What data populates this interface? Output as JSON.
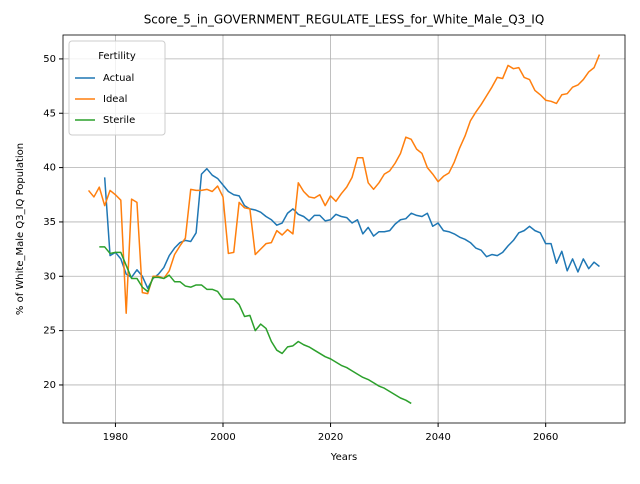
{
  "chart_data": {
    "type": "line",
    "title": "Score_5_in_GOVERNMENT_REGULATE_LESS_for_White_Male_Q3_IQ",
    "x_label": "Years",
    "y_label": "% of White_Male Q3_IQ Population",
    "legend_title": "Fertility",
    "legend_loc": "upper left",
    "grid": true,
    "xlim": [
      1970.25,
      2074.75
    ],
    "ylim": [
      16.5,
      52.2
    ],
    "xticks": [
      1980,
      2000,
      2020,
      2040,
      2060
    ],
    "yticks": [
      20,
      25,
      30,
      35,
      40,
      45,
      50
    ],
    "x": [
      1975,
      1976,
      1977,
      1978,
      1979,
      1980,
      1981,
      1982,
      1983,
      1984,
      1985,
      1986,
      1987,
      1988,
      1989,
      1990,
      1991,
      1992,
      1993,
      1994,
      1995,
      1996,
      1997,
      1998,
      1999,
      2000,
      2001,
      2002,
      2003,
      2004,
      2005,
      2006,
      2007,
      2008,
      2009,
      2010,
      2011,
      2012,
      2013,
      2014,
      2015,
      2016,
      2017,
      2018,
      2019,
      2020,
      2021,
      2022,
      2023,
      2024,
      2025,
      2026,
      2027,
      2028,
      2029,
      2030,
      2031,
      2032,
      2033,
      2034,
      2035,
      2036,
      2037,
      2038,
      2039,
      2040,
      2041,
      2042,
      2043,
      2044,
      2045,
      2046,
      2047,
      2048,
      2049,
      2050,
      2051,
      2052,
      2053,
      2054,
      2055,
      2056,
      2057,
      2058,
      2059,
      2060,
      2061,
      2062,
      2063,
      2064,
      2065,
      2066,
      2067,
      2068,
      2069,
      2070
    ],
    "series": [
      {
        "name": "Actual",
        "color": "#1f77b4",
        "values": [
          null,
          null,
          null,
          39.1,
          31.9,
          32.2,
          31.6,
          30.2,
          29.9,
          30.6,
          30.0,
          28.9,
          29.8,
          30.2,
          30.8,
          31.9,
          32.6,
          33.1,
          33.3,
          33.2,
          34.0,
          39.4,
          39.9,
          39.3,
          39.0,
          38.4,
          37.8,
          37.5,
          37.4,
          36.5,
          36.2,
          36.1,
          35.9,
          35.5,
          35.2,
          34.7,
          34.9,
          35.8,
          36.2,
          35.7,
          35.5,
          35.1,
          35.6,
          35.6,
          35.1,
          35.2,
          35.7,
          35.5,
          35.4,
          34.9,
          35.2,
          33.9,
          34.5,
          33.7,
          34.1,
          34.1,
          34.2,
          34.8,
          35.2,
          35.3,
          35.8,
          35.6,
          35.5,
          35.8,
          34.6,
          34.9,
          34.2,
          34.1,
          33.9,
          33.6,
          33.4,
          33.1,
          32.6,
          32.4,
          31.8,
          32.0,
          31.9,
          32.2,
          32.8,
          33.3,
          34.0,
          34.2,
          34.6,
          34.2,
          34.0,
          33.0,
          33.0,
          31.2,
          32.3,
          30.5,
          31.6,
          30.4,
          31.6,
          30.7,
          31.3,
          30.9
        ]
      },
      {
        "name": "Ideal",
        "color": "#ff7f0e",
        "values": [
          37.9,
          37.3,
          38.2,
          36.5,
          37.9,
          37.5,
          37.0,
          26.6,
          37.1,
          36.8,
          28.5,
          28.4,
          30.0,
          30.0,
          29.8,
          30.5,
          32.0,
          32.8,
          33.5,
          38.0,
          37.9,
          37.9,
          38.0,
          37.8,
          38.3,
          37.3,
          32.1,
          32.2,
          36.8,
          36.3,
          36.2,
          32.0,
          32.5,
          33.0,
          33.1,
          34.2,
          33.8,
          34.3,
          33.9,
          38.6,
          37.8,
          37.3,
          37.2,
          37.5,
          36.5,
          37.4,
          36.9,
          37.6,
          38.2,
          39.1,
          40.9,
          40.9,
          38.6,
          38.0,
          38.6,
          39.4,
          39.7,
          40.4,
          41.3,
          42.8,
          42.6,
          41.7,
          41.3,
          40.0,
          39.4,
          38.7,
          39.2,
          39.5,
          40.5,
          41.8,
          42.9,
          44.3,
          45.1,
          45.8,
          46.6,
          47.4,
          48.3,
          48.2,
          49.4,
          49.1,
          49.2,
          48.3,
          48.1,
          47.1,
          46.7,
          46.2,
          46.1,
          45.9,
          46.7,
          46.8,
          47.4,
          47.6,
          48.1,
          48.8,
          49.2,
          50.4
        ]
      },
      {
        "name": "Sterile",
        "color": "#2ca02c",
        "values": [
          null,
          null,
          32.7,
          32.7,
          32.1,
          32.2,
          32.2,
          31.0,
          29.8,
          29.8,
          29.0,
          28.6,
          29.9,
          29.9,
          29.8,
          30.1,
          29.5,
          29.5,
          29.1,
          29.0,
          29.2,
          29.2,
          28.8,
          28.8,
          28.6,
          27.9,
          27.9,
          27.9,
          27.4,
          26.3,
          26.4,
          25.0,
          25.6,
          25.2,
          24.0,
          23.2,
          22.9,
          23.5,
          23.6,
          24.0,
          23.7,
          23.5,
          23.2,
          22.9,
          22.6,
          22.4,
          22.1,
          21.8,
          21.6,
          21.3,
          21.0,
          20.7,
          20.5,
          20.2,
          19.9,
          19.7,
          19.4,
          19.1,
          18.8,
          18.6,
          18.3,
          null,
          null,
          null,
          null,
          null,
          null,
          null,
          null,
          null,
          null,
          null,
          null,
          null,
          null,
          null,
          null,
          null,
          null,
          null,
          null,
          null,
          null,
          null,
          null,
          null,
          null,
          null,
          null,
          null,
          null,
          null,
          null,
          null,
          null,
          null
        ]
      }
    ]
  }
}
